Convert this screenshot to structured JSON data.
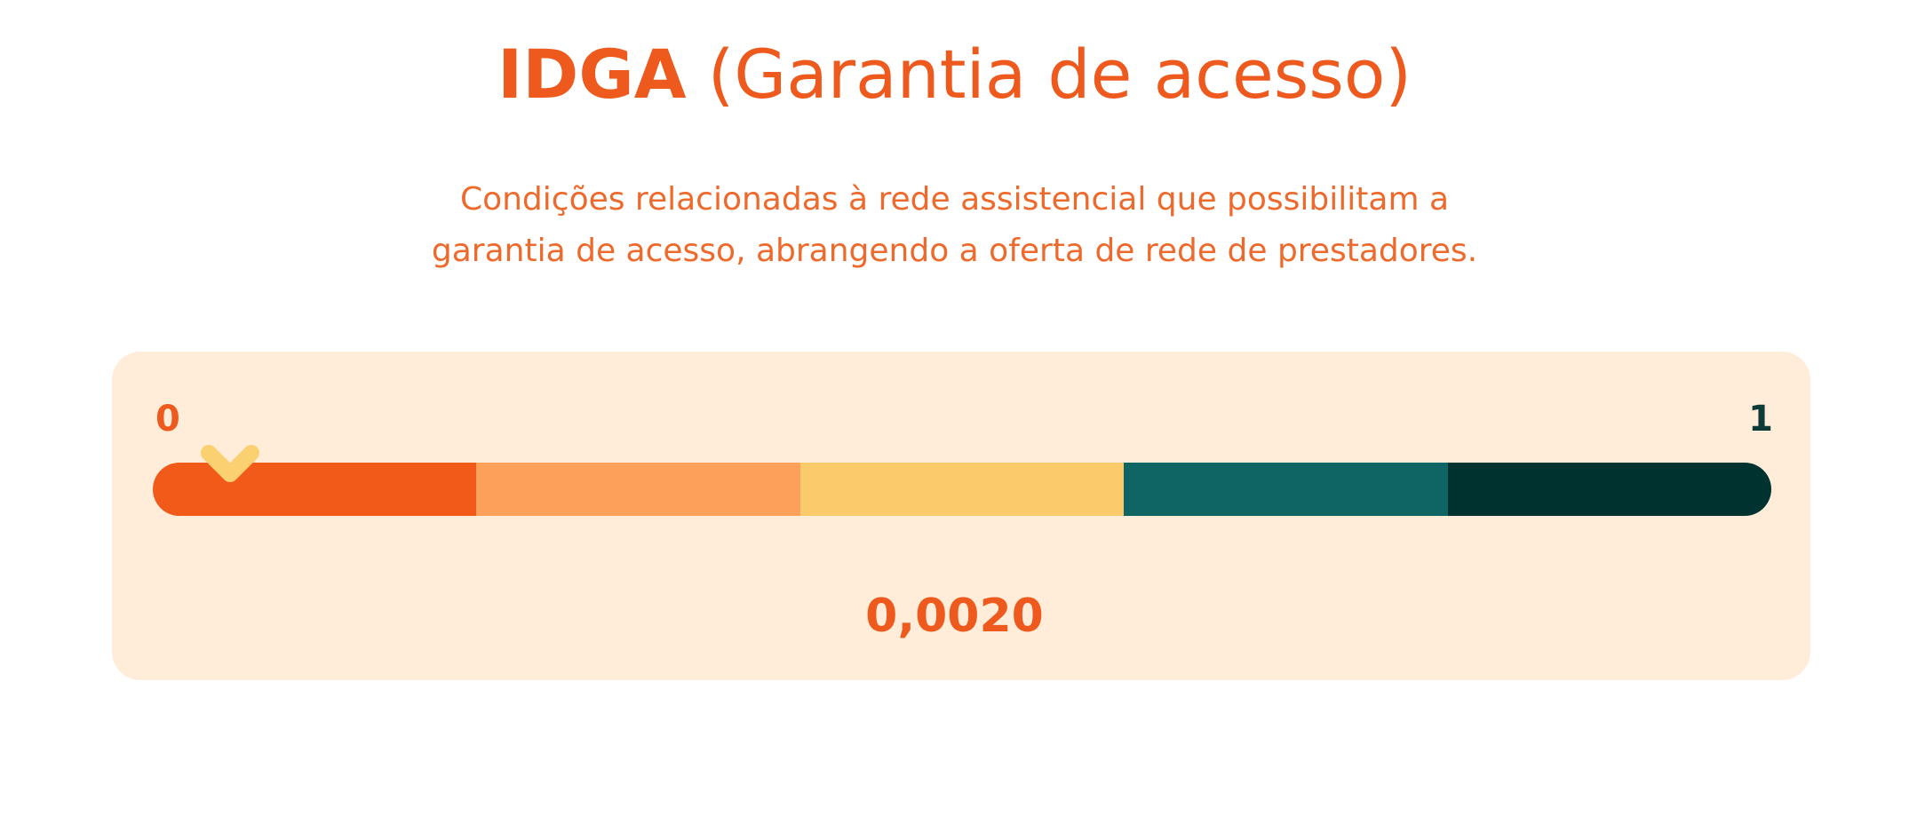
{
  "header": {
    "title_strong": "IDGA",
    "title_rest": "(Garantia de acesso)",
    "description_lines": [
      "Condições relacionadas à rede assistencial que possibilitam a",
      "garantia de acesso, abrangendo a oferta de rede de prestadores."
    ]
  },
  "chart_data": {
    "type": "gauge",
    "title": "IDGA (Garantia de acesso)",
    "min": 0,
    "max": 1,
    "min_label": "0",
    "max_label": "1",
    "value": 0.002,
    "value_label": "0,0020",
    "segments": [
      {
        "from": 0.0,
        "to": 0.2,
        "color": "#f25a1a"
      },
      {
        "from": 0.2,
        "to": 0.4,
        "color": "#fda05a"
      },
      {
        "from": 0.4,
        "to": 0.6,
        "color": "#fbca6a"
      },
      {
        "from": 0.6,
        "to": 0.8,
        "color": "#0f6563"
      },
      {
        "from": 0.8,
        "to": 1.0,
        "color": "#003330"
      }
    ],
    "marker_color": "#fbd070"
  }
}
